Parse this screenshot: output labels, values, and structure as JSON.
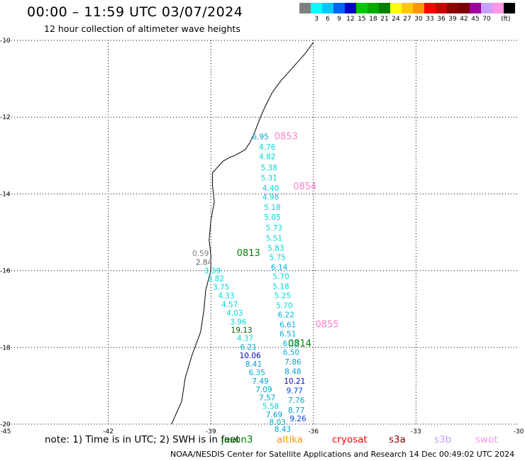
{
  "header": {
    "title": "00:00 – 11:59 UTC 03/07/2024",
    "subtitle": "12 hour collection of altimeter wave heights"
  },
  "legend": {
    "unit": "(ft)",
    "bins": [
      {
        "label": "",
        "color": "#7f7f7f"
      },
      {
        "label": "3",
        "color": "#00ffff"
      },
      {
        "label": "6",
        "color": "#00c8ff"
      },
      {
        "label": "9",
        "color": "#0064ff"
      },
      {
        "label": "12",
        "color": "#0000c8"
      },
      {
        "label": "15",
        "color": "#00c800"
      },
      {
        "label": "18",
        "color": "#00aa00"
      },
      {
        "label": "21",
        "color": "#008000"
      },
      {
        "label": "24",
        "color": "#ffff00"
      },
      {
        "label": "27",
        "color": "#ffc800"
      },
      {
        "label": "30",
        "color": "#ff9600"
      },
      {
        "label": "33",
        "color": "#ff0000"
      },
      {
        "label": "36",
        "color": "#c80000"
      },
      {
        "label": "39",
        "color": "#8c0000"
      },
      {
        "label": "42",
        "color": "#780000"
      },
      {
        "label": "45",
        "color": "#a000a0"
      },
      {
        "label": "70",
        "color": "#c8a0ff"
      },
      {
        "label": "",
        "color": "#ff96e6"
      },
      {
        "label": "",
        "color": "#000000"
      }
    ]
  },
  "map": {
    "lon_range": [
      -45,
      -30
    ],
    "lat_range": [
      -20,
      -10
    ],
    "lon_ticks": [
      "-45",
      "-42",
      "-39",
      "-36",
      "-33",
      "-30"
    ],
    "lat_ticks": [
      "-10",
      "-12",
      "-14",
      "-16",
      "-18",
      "-20"
    ],
    "grid_lon": [
      -42,
      -39,
      -36,
      -33
    ],
    "grid_lat": [
      -12,
      -14,
      -16,
      -18
    ],
    "coastline": [
      [
        -36,
        -10.05
      ],
      [
        -36.25,
        -10.35
      ],
      [
        -36.6,
        -10.7
      ],
      [
        -36.95,
        -11.05
      ],
      [
        -37.2,
        -11.35
      ],
      [
        -37.4,
        -11.7
      ],
      [
        -37.55,
        -12.0
      ],
      [
        -37.7,
        -12.35
      ],
      [
        -37.85,
        -12.65
      ],
      [
        -38.0,
        -12.85
      ],
      [
        -38.3,
        -13.0
      ],
      [
        -38.45,
        -13.05
      ],
      [
        -38.65,
        -13.15
      ],
      [
        -38.95,
        -13.45
      ],
      [
        -38.95,
        -13.8
      ],
      [
        -38.9,
        -14.2
      ],
      [
        -39.0,
        -14.7
      ],
      [
        -39.05,
        -15.2
      ],
      [
        -39.0,
        -15.6
      ],
      [
        -39.0,
        -16.0
      ],
      [
        -39.15,
        -16.5
      ],
      [
        -39.2,
        -17.0
      ],
      [
        -39.3,
        -17.6
      ],
      [
        -39.55,
        -18.2
      ],
      [
        -39.75,
        -18.8
      ],
      [
        -39.85,
        -19.4
      ],
      [
        -40.1,
        -19.9
      ],
      [
        -40.15,
        -20.0
      ]
    ],
    "observations": [
      {
        "lon": -37.55,
        "lat": -12.58,
        "value": "6.95",
        "color": "#00a0d0"
      },
      {
        "lon": -37.35,
        "lat": -12.85,
        "value": "4.76",
        "color": "#00d8d8"
      },
      {
        "lon": -37.35,
        "lat": -13.1,
        "value": "4.82",
        "color": "#00d8d8"
      },
      {
        "lon": -37.3,
        "lat": -13.38,
        "value": "5.38",
        "color": "#00d8d8"
      },
      {
        "lon": -37.3,
        "lat": -13.65,
        "value": "5.31",
        "color": "#00d8d8"
      },
      {
        "lon": -37.25,
        "lat": -13.92,
        "value": "4.40",
        "color": "#00d8d8"
      },
      {
        "lon": -37.25,
        "lat": -14.15,
        "value": "4.98",
        "color": "#00d8d8"
      },
      {
        "lon": -37.2,
        "lat": -14.42,
        "value": "5.18",
        "color": "#00d8d8"
      },
      {
        "lon": -37.2,
        "lat": -14.68,
        "value": "5.05",
        "color": "#00d8d8"
      },
      {
        "lon": -37.15,
        "lat": -14.95,
        "value": "5.73",
        "color": "#00d8d8"
      },
      {
        "lon": -37.15,
        "lat": -15.22,
        "value": "5.51",
        "color": "#00d8d8"
      },
      {
        "lon": -37.1,
        "lat": -15.48,
        "value": "5.83",
        "color": "#00d8d8"
      },
      {
        "lon": -37.05,
        "lat": -15.72,
        "value": "5.75",
        "color": "#00d8d8"
      },
      {
        "lon": -37.0,
        "lat": -15.98,
        "value": "6.14",
        "color": "#00b0e0"
      },
      {
        "lon": -36.95,
        "lat": -16.22,
        "value": "5.70",
        "color": "#00d8d8"
      },
      {
        "lon": -36.95,
        "lat": -16.48,
        "value": "5.18",
        "color": "#00d8d8"
      },
      {
        "lon": -36.9,
        "lat": -16.72,
        "value": "5.25",
        "color": "#00d8d8"
      },
      {
        "lon": -36.85,
        "lat": -16.98,
        "value": "5.70",
        "color": "#00d8d8"
      },
      {
        "lon": -36.8,
        "lat": -17.22,
        "value": "6.22",
        "color": "#00b0e0"
      },
      {
        "lon": -36.75,
        "lat": -17.48,
        "value": "6.61",
        "color": "#00b0e0"
      },
      {
        "lon": -36.75,
        "lat": -17.72,
        "value": "6.51",
        "color": "#00b0e0"
      },
      {
        "lon": -36.65,
        "lat": -17.97,
        "value": "6.12",
        "color": "#00b0e0"
      },
      {
        "lon": -36.65,
        "lat": -18.2,
        "value": "6.50",
        "color": "#00b0e0"
      },
      {
        "lon": -36.6,
        "lat": -18.45,
        "value": "7.86",
        "color": "#00a0d0"
      },
      {
        "lon": -36.6,
        "lat": -18.7,
        "value": "8.48",
        "color": "#00a0d0"
      },
      {
        "lon": -36.55,
        "lat": -18.95,
        "value": "10.21",
        "color": "#0000c0"
      },
      {
        "lon": -36.55,
        "lat": -19.2,
        "value": "9.77",
        "color": "#0040e0"
      },
      {
        "lon": -36.5,
        "lat": -19.45,
        "value": "7.76",
        "color": "#00a0d0"
      },
      {
        "lon": -36.5,
        "lat": -19.7,
        "value": "8.77",
        "color": "#00a0d0"
      },
      {
        "lon": -36.45,
        "lat": -19.93,
        "value": "9.26",
        "color": "#0040e0"
      },
      {
        "lon": -39.3,
        "lat": -15.62,
        "value": "0.59",
        "color": "#808080"
      },
      {
        "lon": -39.2,
        "lat": -15.85,
        "value": "2.84",
        "color": "#606060"
      },
      {
        "lon": -38.95,
        "lat": -16.07,
        "value": "3.39",
        "color": "#00d8d8"
      },
      {
        "lon": -38.85,
        "lat": -16.28,
        "value": "3.82",
        "color": "#00d8d8"
      },
      {
        "lon": -38.7,
        "lat": -16.5,
        "value": "3.75",
        "color": "#00d8d8"
      },
      {
        "lon": -38.55,
        "lat": -16.72,
        "value": "4.33",
        "color": "#00d8d8"
      },
      {
        "lon": -38.45,
        "lat": -16.95,
        "value": "4.57",
        "color": "#00d8d8"
      },
      {
        "lon": -38.3,
        "lat": -17.17,
        "value": "4.03",
        "color": "#00d8d8"
      },
      {
        "lon": -38.2,
        "lat": -17.4,
        "value": "3.96",
        "color": "#00d8d8"
      },
      {
        "lon": -38.1,
        "lat": -17.62,
        "value": "19.13",
        "color": "#006000"
      },
      {
        "lon": -38.0,
        "lat": -17.83,
        "value": "4.37",
        "color": "#00d8d8"
      },
      {
        "lon": -37.9,
        "lat": -18.06,
        "value": "6.21",
        "color": "#00b0e0"
      },
      {
        "lon": -37.85,
        "lat": -18.28,
        "value": "10.06",
        "color": "#0000c0"
      },
      {
        "lon": -37.75,
        "lat": -18.5,
        "value": "8.41",
        "color": "#00a0d0"
      },
      {
        "lon": -37.65,
        "lat": -18.72,
        "value": "6.35",
        "color": "#00b0e0"
      },
      {
        "lon": -37.55,
        "lat": -18.95,
        "value": "7.49",
        "color": "#00a0d0"
      },
      {
        "lon": -37.45,
        "lat": -19.17,
        "value": "7.09",
        "color": "#00a0d0"
      },
      {
        "lon": -37.35,
        "lat": -19.38,
        "value": "7.57",
        "color": "#00a0d0"
      },
      {
        "lon": -37.25,
        "lat": -19.6,
        "value": "5.58",
        "color": "#00d8d8"
      },
      {
        "lon": -37.15,
        "lat": -19.82,
        "value": "7.69",
        "color": "#00a0d0"
      },
      {
        "lon": -37.05,
        "lat": -20.02,
        "value": "8.03",
        "color": "#00a0d0"
      },
      {
        "lon": -36.9,
        "lat": -20.2,
        "value": "8.43",
        "color": "#00a0d0"
      }
    ],
    "passes": [
      {
        "lon": -36.8,
        "lat": -12.58,
        "label": "0853",
        "color": "#ff80c8"
      },
      {
        "lon": -36.25,
        "lat": -13.88,
        "label": "0854",
        "color": "#ff80c8"
      },
      {
        "lon": -37.9,
        "lat": -15.62,
        "label": "0813",
        "color": "#008000"
      },
      {
        "lon": -35.6,
        "lat": -17.48,
        "label": "0855",
        "color": "#ff80c8"
      },
      {
        "lon": -36.4,
        "lat": -17.98,
        "label": "0814",
        "color": "#008000"
      }
    ]
  },
  "footer": {
    "note": "note: 1) Time is in UTC; 2) SWH is in feet",
    "satellites": [
      {
        "name": "jason3",
        "color": "#008000"
      },
      {
        "name": "altika",
        "color": "#ff9600"
      },
      {
        "name": "cryosat",
        "color": "#ff0000"
      },
      {
        "name": "s3a",
        "color": "#8c0000"
      },
      {
        "name": "s3b",
        "color": "#c8a0ff"
      },
      {
        "name": "swot",
        "color": "#ff96e6"
      }
    ],
    "credit": "NOAA/NESDIS Center for Satellite Applications and Research    14 Dec 00:49:02 UTC 2024"
  }
}
